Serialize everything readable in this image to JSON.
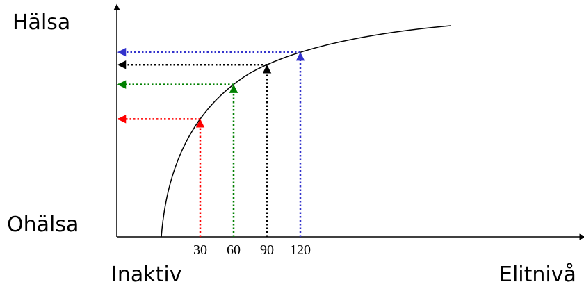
{
  "labels": {
    "y_top": "Hälsa",
    "y_bottom": "Ohälsa",
    "x_left": "Inaktiv",
    "x_right": "Elitnivå"
  },
  "markers": [
    {
      "value": 30,
      "label": "30",
      "color": "#ff0000"
    },
    {
      "value": 60,
      "label": "60",
      "color": "#008000"
    },
    {
      "value": 90,
      "label": "90",
      "color": "#000000"
    },
    {
      "value": 120,
      "label": "120",
      "color": "#3333cc"
    }
  ]
}
